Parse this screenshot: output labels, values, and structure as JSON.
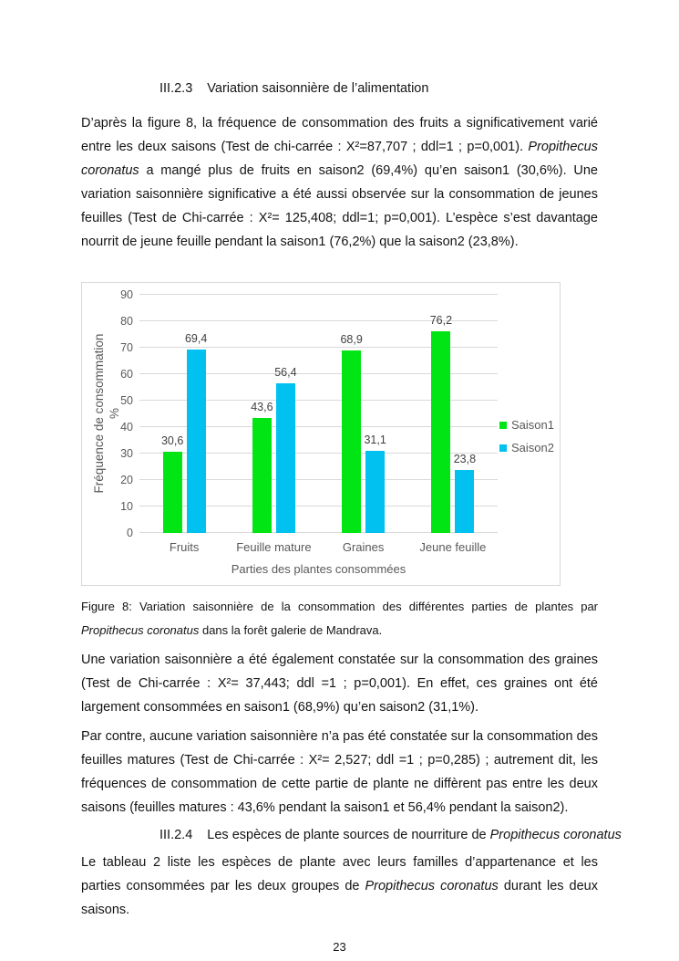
{
  "sections": {
    "s323": {
      "number": "III.2.3",
      "title": "Variation saisonnière de l’alimentation"
    },
    "s324": {
      "number": "III.2.4",
      "title_runs": [
        {
          "t": "Les espèces de plante sources de nourriture de "
        },
        {
          "t": "Propithecus coronatus",
          "i": true
        }
      ]
    }
  },
  "paragraphs": {
    "p1": [
      {
        "t": "D’après la figure 8, la fréquence de consommation des fruits a significativement varié entre les deux saisons (Test de chi-carrée : X²=87,707 ; ddl=1 ; p=0,001). "
      },
      {
        "t": "Propithecus coronatus",
        "i": true
      },
      {
        "t": " a mangé plus de fruits en saison2 (69,4%) qu’en saison1 (30,6%). Une variation saisonnière significative a été aussi observée sur la consommation de jeunes feuilles (Test de Chi-carrée : X²= 125,408; ddl=1; p=0,001). L’espèce s’est davantage nourrit de jeune feuille pendant la saison1 (76,2%) que la saison2 (23,8%)."
      }
    ],
    "p2": [
      {
        "t": "Une variation saisonnière a été également  constatée sur la consommation des graines (Test de Chi-carrée : X²= 37,443; ddl =1 ; p=0,001). En effet, ces graines ont été largement consommées en saison1 (68,9%) qu’en saison2 (31,1%)."
      }
    ],
    "p3": [
      {
        "t": "Par contre, aucune variation saisonnière n’a pas été constatée sur la consommation des feuilles matures (Test de Chi-carrée : X²= 2,527; ddl =1 ; p=0,285) ; autrement dit, les fréquences de consommation de cette partie de plante ne diffèrent pas entre les deux saisons (feuilles matures : 43,6% pendant la saison1 et 56,4% pendant la saison2)."
      }
    ],
    "p4": [
      {
        "t": "Le tableau 2 liste les espèces de plante avec leurs familles d’appartenance et les parties consommées par les deux groupes de "
      },
      {
        "t": "Propithecus coronatus",
        "i": true
      },
      {
        "t": " durant les deux saisons."
      }
    ]
  },
  "figure_caption": [
    {
      "t": "Figure 8: Variation saisonnière de la consommation des différentes parties de plantes par "
    },
    {
      "t": "Propithecus coronatus",
      "i": true
    },
    {
      "t": " dans la forêt galerie de Mandrava."
    }
  ],
  "chart_data": {
    "type": "bar",
    "title": "",
    "categories": [
      "Fruits",
      "Feuille mature",
      "Graines",
      "Jeune feuille"
    ],
    "series": [
      {
        "name": "Saison1",
        "color": "#00e513",
        "values": [
          30.6,
          43.6,
          68.9,
          76.2
        ],
        "labels": [
          "30,6",
          "43,6",
          "68,9",
          "76,2"
        ]
      },
      {
        "name": "Saison2",
        "color": "#00c1f0",
        "values": [
          69.4,
          56.4,
          31.1,
          23.8
        ],
        "labels": [
          "69,4",
          "56,4",
          "31,1",
          "23,8"
        ]
      }
    ],
    "xlabel": "Parties des plantes consommées",
    "ylabel": "Fréquence de consommation",
    "ylabel_line2": "%",
    "ylim": [
      0,
      90
    ],
    "yticks": [
      "0",
      "10",
      "20",
      "30",
      "40",
      "50",
      "60",
      "70",
      "80",
      "90"
    ],
    "grid": true,
    "gridline_color": "#d9d9d9",
    "legend_position": "right"
  },
  "page_number": "23"
}
